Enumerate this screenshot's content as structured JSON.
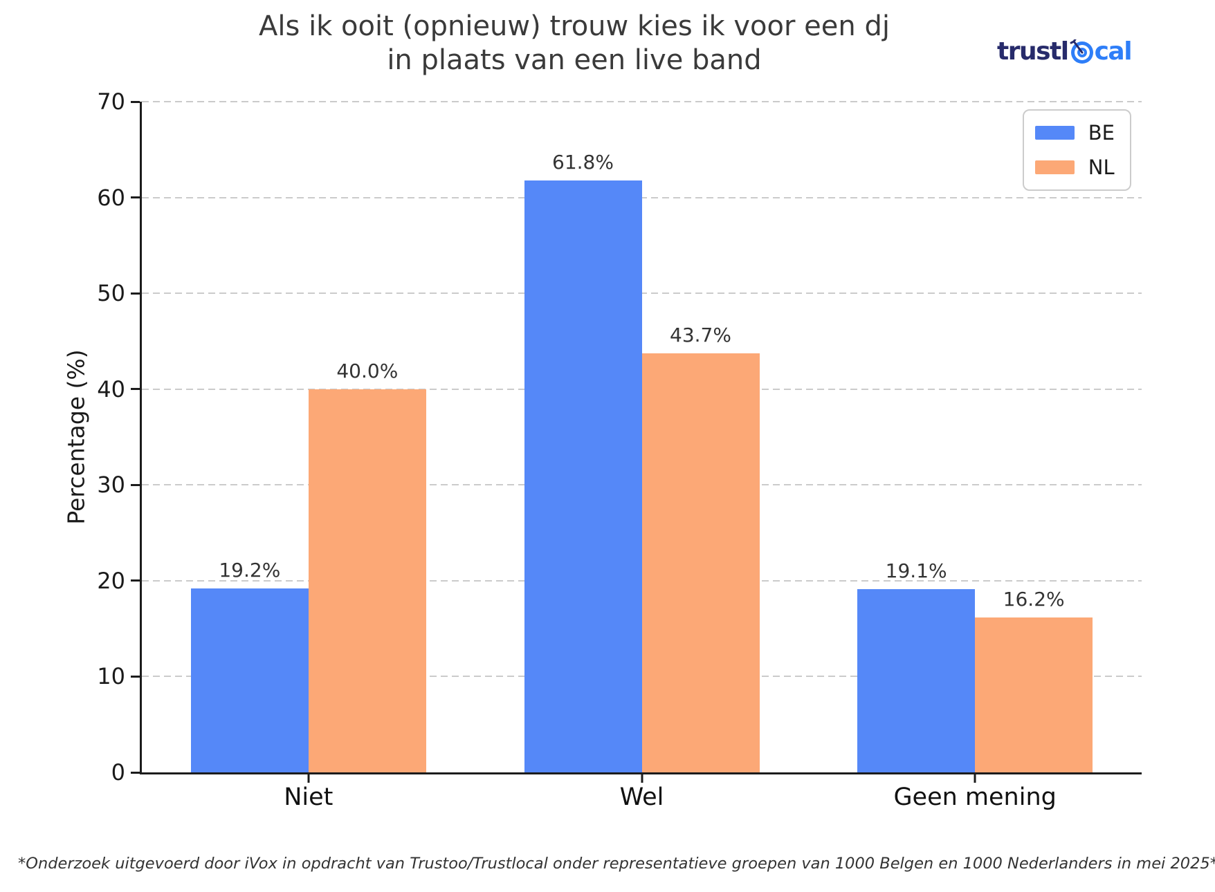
{
  "header": {
    "title": "Als ik ooit (opnieuw) trouw kies ik voor een dj\nin plaats van een live band",
    "logo": {
      "part1": "trustl",
      "part2": "cal",
      "icon": "target-icon",
      "color_dark": "#272b6b",
      "color_light": "#2e7ef8"
    }
  },
  "chart_data": {
    "type": "bar",
    "categories": [
      "Niet",
      "Wel",
      "Geen mening"
    ],
    "series": [
      {
        "name": "BE",
        "color": "#5588f8",
        "values": [
          19.2,
          61.8,
          19.1
        ],
        "labels": [
          "19.2%",
          "61.8%",
          "19.1%"
        ]
      },
      {
        "name": "NL",
        "color": "#fca876",
        "values": [
          40.0,
          43.7,
          16.2
        ],
        "labels": [
          "40.0%",
          "43.7%",
          "16.2%"
        ]
      }
    ],
    "title": "Als ik ooit (opnieuw) trouw kies ik voor een dj in plaats van een live band",
    "xlabel": "",
    "ylabel": "Percentage (%)",
    "ylim": [
      0,
      70
    ],
    "yticks": [
      0,
      10,
      20,
      30,
      40,
      50,
      60,
      70
    ],
    "grid": "horizontal-dashed",
    "grid_color": "#cbcbcb",
    "legend_position": "upper right",
    "legend_entries": [
      "BE",
      "NL"
    ]
  },
  "footer": {
    "note": "*Onderzoek uitgevoerd door iVox in opdracht van Trustoo/Trustlocal onder representatieve groepen van 1000 Belgen en 1000 Nederlanders in mei 2025*"
  }
}
